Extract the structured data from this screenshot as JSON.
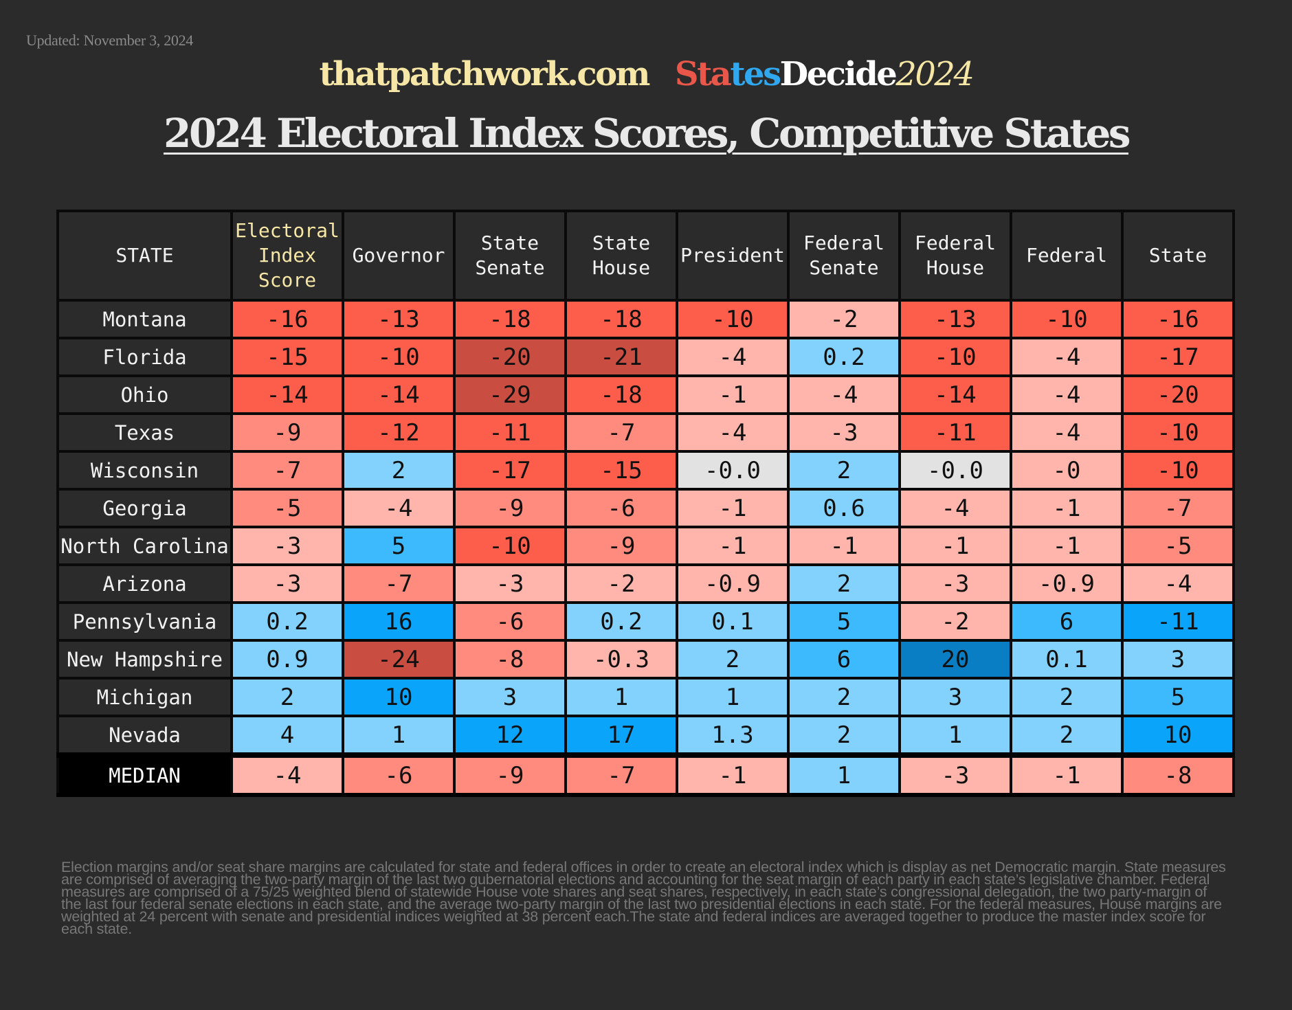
{
  "updated": "Updated: November 3, 2024",
  "brand": {
    "site": "thatpatchwork.com",
    "logo_parts": [
      {
        "text": "Sta",
        "color": "red"
      },
      {
        "text": "te",
        "color": "blue"
      },
      {
        "text": "s",
        "color": "blue"
      },
      {
        "text": "Decide",
        "color": "white"
      },
      {
        "text": "2024",
        "color": "yellow"
      }
    ]
  },
  "colors": {
    "background": "#2b2b2b",
    "accent_yellow": "#f6e7a6",
    "brand_red": "#e8574a",
    "brand_blue": "#2fa8ef"
  },
  "chart_data": {
    "type": "table",
    "title": "2024 Electoral Index Scores, Competitive States",
    "columns": [
      "STATE",
      "Electoral Index Score",
      "Governor",
      "State Senate",
      "State House",
      "President",
      "Federal Senate",
      "Federal House",
      "Federal",
      "State"
    ],
    "header_lines": [
      [
        "STATE"
      ],
      [
        "Electoral",
        "Index",
        "Score"
      ],
      [
        "Governor"
      ],
      [
        "State",
        "Senate"
      ],
      [
        "State",
        "House"
      ],
      [
        "President"
      ],
      [
        "Federal",
        "Senate"
      ],
      [
        "Federal",
        "House"
      ],
      [
        "Federal"
      ],
      [
        "State"
      ]
    ],
    "rows": [
      {
        "state": "Montana",
        "values": [
          "-16",
          "-13",
          "-18",
          "-18",
          "-10",
          "-2",
          "-13",
          "-10",
          "-16"
        ]
      },
      {
        "state": "Florida",
        "values": [
          "-15",
          "-10",
          "-20",
          "-21",
          "-4",
          "0.2",
          "-10",
          "-4",
          "-17"
        ]
      },
      {
        "state": "Ohio",
        "values": [
          "-14",
          "-14",
          "-29",
          "-18",
          "-1",
          "-4",
          "-14",
          "-4",
          "-20"
        ]
      },
      {
        "state": "Texas",
        "values": [
          "-9",
          "-12",
          "-11",
          "-7",
          "-4",
          "-3",
          "-11",
          "-4",
          "-10"
        ]
      },
      {
        "state": "Wisconsin",
        "values": [
          "-7",
          "2",
          "-17",
          "-15",
          "-0.0",
          "2",
          "-0.0",
          "-0",
          "-10"
        ]
      },
      {
        "state": "Georgia",
        "values": [
          "-5",
          "-4",
          "-9",
          "-6",
          "-1",
          "0.6",
          "-4",
          "-1",
          "-7"
        ]
      },
      {
        "state": "North Carolina",
        "values": [
          "-3",
          "5",
          "-10",
          "-9",
          "-1",
          "-1",
          "-1",
          "-1",
          "-5"
        ]
      },
      {
        "state": "Arizona",
        "values": [
          "-3",
          "-7",
          "-3",
          "-2",
          "-0.9",
          "2",
          "-3",
          "-0.9",
          "-4"
        ]
      },
      {
        "state": "Pennsylvania",
        "values": [
          "0.2",
          "16",
          "-6",
          "0.2",
          "0.1",
          "5",
          "-2",
          "6",
          "-11"
        ]
      },
      {
        "state": "New Hampshire",
        "values": [
          "0.9",
          "-24",
          "-8",
          "-0.3",
          "2",
          "6",
          "20",
          "0.1",
          "3"
        ]
      },
      {
        "state": "Michigan",
        "values": [
          "2",
          "10",
          "3",
          "1",
          "1",
          "2",
          "3",
          "2",
          "5"
        ]
      },
      {
        "state": "Nevada",
        "values": [
          "4",
          "1",
          "12",
          "17",
          "1.3",
          "2",
          "1",
          "2",
          "10"
        ]
      }
    ],
    "median": {
      "state": "MEDIAN",
      "values": [
        "-4",
        "-6",
        "-9",
        "-7",
        "-1",
        "1",
        "-3",
        "-1",
        "-8"
      ]
    },
    "cell_colors": [
      [
        "#fd5d4b",
        "#fd5d4b",
        "#fd5d4b",
        "#fd5d4b",
        "#fd5d4b",
        "#ffb5ab",
        "#fd5d4b",
        "#fd5d4b",
        "#fd5d4b"
      ],
      [
        "#fd5d4b",
        "#fd5d4b",
        "#c94d40",
        "#c94d40",
        "#ffb5ab",
        "#83d1fd",
        "#fd5d4b",
        "#ffb5ab",
        "#fd5d4b"
      ],
      [
        "#fd5d4b",
        "#fd5d4b",
        "#c94d40",
        "#fd5d4b",
        "#ffb5ab",
        "#ffb5ab",
        "#fd5d4b",
        "#ffb5ab",
        "#fd5d4b"
      ],
      [
        "#ff8b7f",
        "#fd5d4b",
        "#fd5d4b",
        "#ff8b7f",
        "#ffb5ab",
        "#ffb5ab",
        "#fd5d4b",
        "#ffb5ab",
        "#fd5d4b"
      ],
      [
        "#ff8b7f",
        "#83d1fd",
        "#fd5d4b",
        "#fd5d4b",
        "#e2e2e2",
        "#83d1fd",
        "#e2e2e2",
        "#ffb5ab",
        "#fd5d4b"
      ],
      [
        "#ff8b7f",
        "#ffb5ab",
        "#ff8b7f",
        "#ff8b7f",
        "#ffb5ab",
        "#83d1fd",
        "#ffb5ab",
        "#ffb5ab",
        "#ff8b7f"
      ],
      [
        "#ffb5ab",
        "#3db9fd",
        "#fd5d4b",
        "#ff8b7f",
        "#ffb5ab",
        "#ffb5ab",
        "#ffb5ab",
        "#ffb5ab",
        "#ff8b7f"
      ],
      [
        "#ffb5ab",
        "#ff8b7f",
        "#ffb5ab",
        "#ffb5ab",
        "#ffb5ab",
        "#83d1fd",
        "#ffb5ab",
        "#ffb5ab",
        "#ffb5ab"
      ],
      [
        "#83d1fd",
        "#0aa5fb",
        "#ff8b7f",
        "#83d1fd",
        "#83d1fd",
        "#3db9fd",
        "#ffb5ab",
        "#3db9fd",
        "#0aa5fb"
      ],
      [
        "#83d1fd",
        "#c94d40",
        "#ff8b7f",
        "#ffb5ab",
        "#83d1fd",
        "#3db9fd",
        "#0a7ec4",
        "#83d1fd",
        "#83d1fd"
      ],
      [
        "#83d1fd",
        "#0aa5fb",
        "#83d1fd",
        "#83d1fd",
        "#83d1fd",
        "#83d1fd",
        "#83d1fd",
        "#83d1fd",
        "#3db9fd"
      ],
      [
        "#83d1fd",
        "#83d1fd",
        "#0aa5fb",
        "#0aa5fb",
        "#83d1fd",
        "#83d1fd",
        "#83d1fd",
        "#83d1fd",
        "#0aa5fb"
      ]
    ],
    "median_colors": [
      "#ffb5ab",
      "#ff8b7f",
      "#ff8b7f",
      "#ff8b7f",
      "#ffb5ab",
      "#83d1fd",
      "#ffb5ab",
      "#ffb5ab",
      "#ff8b7f"
    ]
  },
  "footnote": "Election margins and/or seat share margins are calculated for state and federal offices in order to create an electoral index which is display as net Democratic margin. State measures are comprised of averaging the two-party margin of the last two gubernatorial elections and accounting for the seat margin of each party in each state’s legislative chamber. Federal measures are comprised of a 75/25 weighted blend of statewide House vote shares and seat shares, respectively, in each state’s congressional delegation, the two party-margin of the last four federal senate elections in each state, and the average two-party margin of the last two presidential elections in each state. For the federal measures, House margins are weighted at 24 percent with senate and presidential indices weighted at 38 percent each.The state and federal indices are averaged together to produce the master index score for each state."
}
